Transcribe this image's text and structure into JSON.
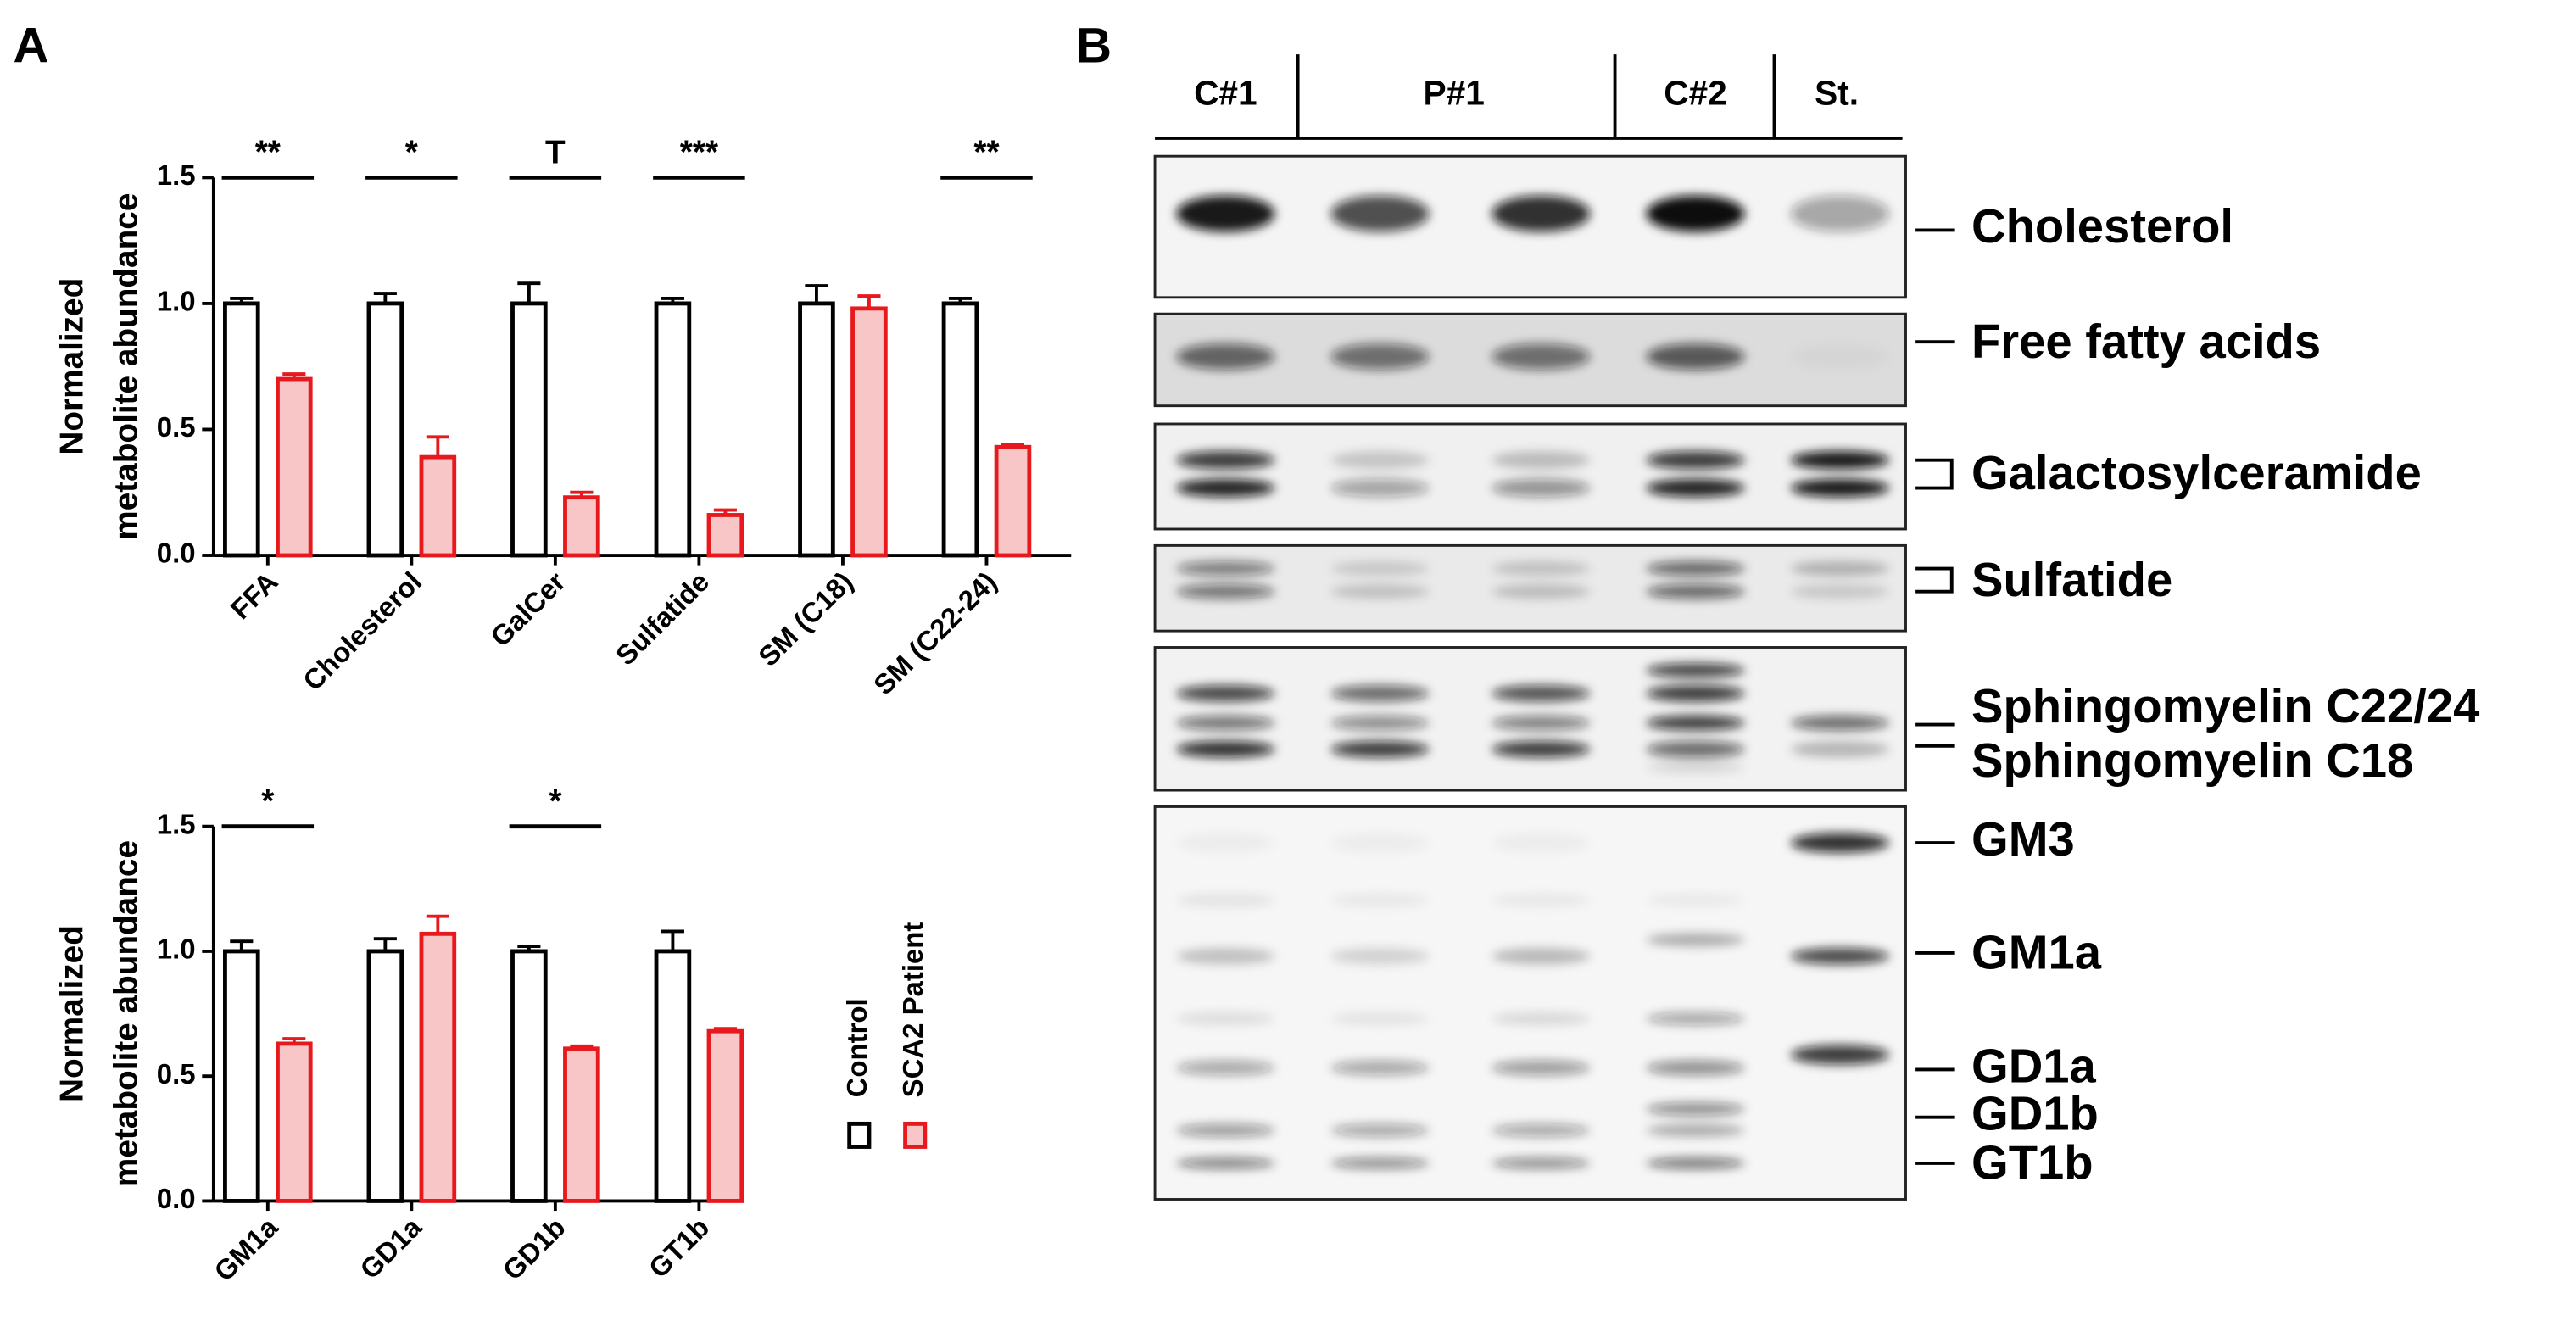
{
  "panel_labels": [
    "A",
    "B"
  ],
  "chart_data": [
    {
      "type": "bar",
      "y_label": [
        "Normalized",
        "metabolite abundance"
      ],
      "categories": [
        "FFA",
        "Cholesterol",
        "GalCer",
        "Sulfatide",
        "SM (C18)",
        "SM (C22-24)"
      ],
      "series": [
        {
          "name": "Control",
          "color": "#000000",
          "fill": "#ffffff",
          "values": [
            1.0,
            1.0,
            1.0,
            1.0,
            1.0,
            1.0
          ],
          "errors": [
            0.02,
            0.04,
            0.08,
            0.02,
            0.07,
            0.02
          ]
        },
        {
          "name": "SCA2 Patient",
          "color": "#e8191e",
          "fill": "#f8c6c6",
          "values": [
            0.7,
            0.39,
            0.23,
            0.16,
            0.98,
            0.43
          ],
          "errors": [
            0.02,
            0.08,
            0.02,
            0.02,
            0.05,
            0.01
          ]
        }
      ],
      "significance": [
        "**",
        "*",
        "T",
        "***",
        null,
        "**"
      ],
      "ylim": [
        0,
        1.5
      ],
      "yticks": [
        {
          "value": 0,
          "label": "0.0"
        },
        {
          "value": 0.5,
          "label": "0.5"
        },
        {
          "value": 1,
          "label": "1.0"
        },
        {
          "value": 1.5,
          "label": "1.5"
        }
      ],
      "legend": false
    },
    {
      "type": "bar",
      "y_label": [
        "Normalized",
        "metabolite abundance"
      ],
      "categories": [
        "GM1a",
        "GD1a",
        "GD1b",
        "GT1b"
      ],
      "series": [
        {
          "name": "Control",
          "color": "#000000",
          "fill": "#ffffff",
          "values": [
            1.0,
            1.0,
            1.0,
            1.0
          ],
          "errors": [
            0.04,
            0.05,
            0.02,
            0.08
          ]
        },
        {
          "name": "SCA2 Patient",
          "color": "#e8191e",
          "fill": "#f8c6c6",
          "values": [
            0.63,
            1.07,
            0.61,
            0.68
          ],
          "errors": [
            0.02,
            0.07,
            0.01,
            0.01
          ]
        }
      ],
      "significance": [
        "*",
        null,
        "*",
        null
      ],
      "ylim": [
        0,
        1.5
      ],
      "yticks": [
        {
          "value": 0,
          "label": "0.0"
        },
        {
          "value": 0.5,
          "label": "0.5"
        },
        {
          "value": 1,
          "label": "1.0"
        },
        {
          "value": 1.5,
          "label": "1.5"
        }
      ],
      "legend": true
    }
  ],
  "gel": {
    "lanes": [
      "C#1",
      "P#1",
      "C#2",
      "St."
    ],
    "bands": [
      "Cholesterol",
      "Free fatty acids",
      "Galactosylceramide",
      "Sulfatide",
      "Sphingomyelin C22/24",
      "Sphingomyelin C18",
      "GM3",
      "GM1a",
      "GD1a",
      "GD1b",
      "GT1b"
    ]
  }
}
